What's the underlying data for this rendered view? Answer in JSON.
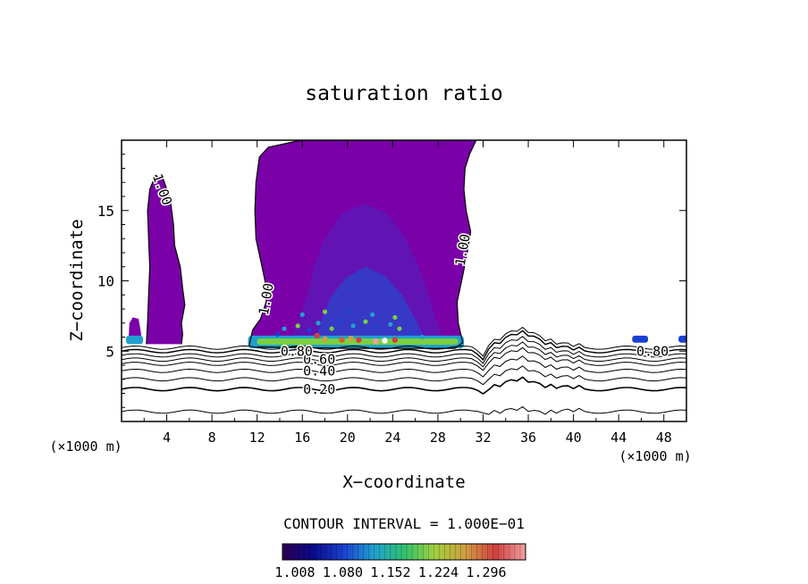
{
  "chart_data": {
    "type": "heatmap",
    "title": "saturation ratio",
    "xlabel": "X−coordinate",
    "ylabel": "Z−coordinate",
    "x_unit_left": "(×1000 m)",
    "x_unit_right": "(×1000 m)",
    "xlim": [
      0,
      50
    ],
    "ylim": [
      0,
      20
    ],
    "xticks": [
      4,
      8,
      12,
      16,
      20,
      24,
      28,
      32,
      36,
      40,
      44,
      48
    ],
    "yticks": [
      5,
      10,
      15
    ],
    "contour_interval_text": "CONTOUR INTERVAL = 1.000E−01",
    "contour_levels": [
      0.1,
      0.2,
      0.3,
      0.4,
      0.5,
      0.6,
      0.7,
      0.8,
      1.0
    ],
    "contour_labels": [
      {
        "text": "0.20",
        "x": 17.5,
        "z": 2.3
      },
      {
        "text": "0.40",
        "x": 17.5,
        "z": 3.6
      },
      {
        "text": "0.60",
        "x": 17.5,
        "z": 4.4
      },
      {
        "text": "0.80",
        "x": 15.5,
        "z": 5.0
      },
      {
        "text": "0.80",
        "x": 47,
        "z": 5.0
      },
      {
        "text": "1.00",
        "x": 3.6,
        "z": 16.5
      },
      {
        "text": "1.00",
        "x": 12.8,
        "z": 8.7
      },
      {
        "text": "1.00",
        "x": 30.2,
        "z": 12.2
      }
    ],
    "colorbar": {
      "ticks": [
        "1.008",
        "1.080",
        "1.152",
        "1.224",
        "1.296"
      ],
      "colors": [
        "#2a0050",
        "#0a0a8a",
        "#1a40d0",
        "#20a0d0",
        "#30c070",
        "#a0d040",
        "#d0a040",
        "#d04040",
        "#f0a0a0"
      ]
    },
    "colors": {
      "supersat_fill": "#7a00a8",
      "inner_fill": "#5a1ab8",
      "core_fill": "#3040c8"
    }
  }
}
